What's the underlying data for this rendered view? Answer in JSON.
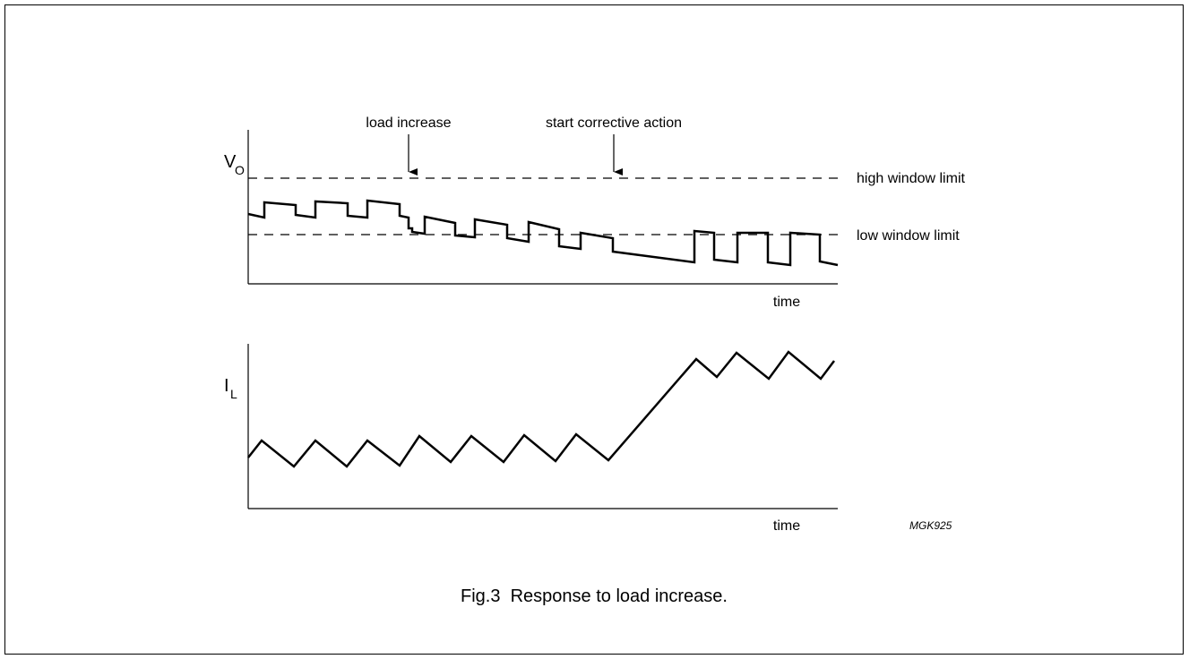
{
  "figure": {
    "caption": "Fig.3  Response to load increase.",
    "code": "MGK925"
  },
  "top_plot": {
    "ylabel_main": "V",
    "ylabel_sub": "O",
    "xlabel": "time",
    "annotations": {
      "load_increase": "load increase",
      "start_corrective": "start corrective action"
    },
    "thresholds": {
      "high": "high window limit",
      "low": "low window limit"
    }
  },
  "bottom_plot": {
    "ylabel_main": "I",
    "ylabel_sub": "L",
    "xlabel": "time"
  }
}
